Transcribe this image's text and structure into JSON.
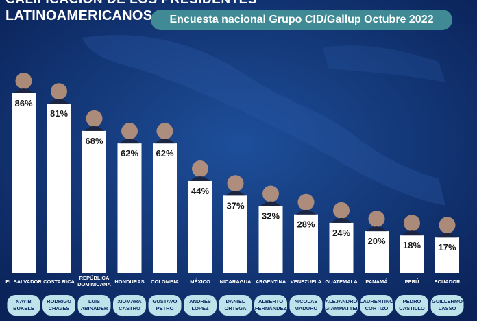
{
  "header": {
    "title_top": "CALIFICACIÓN DE LOS PRESIDENTES",
    "title_main": "LATINOAMERICANOS",
    "subtitle": "Encuesta nacional Grupo CID/Gallup Octubre 2022"
  },
  "colors": {
    "background": "#0c2a66",
    "bar": "#ffffff",
    "pill": "#bfe3ea",
    "subtitle_pill": "#3f8a95"
  },
  "chart_data": {
    "type": "bar",
    "categories": [
      "EL SALVADOR",
      "COSTA RICA",
      "REPÚBLICA DOMINICANA",
      "HONDURAS",
      "COLOMBIA",
      "MÉXICO",
      "NICARAGUA",
      "ARGENTINA",
      "VENEZUELA",
      "GUATEMALA",
      "PANAMÁ",
      "PERÚ",
      "ECUADOR"
    ],
    "category_lines": [
      [
        "EL SALVADOR"
      ],
      [
        "COSTA RICA"
      ],
      [
        "REPÚBLICA",
        "DOMINICANA"
      ],
      [
        "HONDURAS"
      ],
      [
        "COLOMBIA"
      ],
      [
        "MÉXICO"
      ],
      [
        "NICARAGUA"
      ],
      [
        "ARGENTINA"
      ],
      [
        "VENEZUELA"
      ],
      [
        "GUATEMALA"
      ],
      [
        "PANAMÁ"
      ],
      [
        "PERÚ"
      ],
      [
        "ECUADOR"
      ]
    ],
    "presidents": [
      [
        "NAYIB",
        "BUKELE"
      ],
      [
        "RODRIGO",
        "CHAVES"
      ],
      [
        "LUIS",
        "ABINADER"
      ],
      [
        "XIOMARA",
        "CASTRO"
      ],
      [
        "GUSTAVO",
        "PETRO"
      ],
      [
        "ANDRÉS",
        "LOPEZ"
      ],
      [
        "DANIEL",
        "ORTEGA"
      ],
      [
        "ALBERTO",
        "FERNÁNDEZ"
      ],
      [
        "NICOLAS",
        "MADURO"
      ],
      [
        "ALEJANDRO",
        "GIAMMATTEI"
      ],
      [
        "LAURENTINO",
        "CORTIZO"
      ],
      [
        "PEDRO",
        "CASTILLO"
      ],
      [
        "GUILLERMO",
        "LASSO"
      ]
    ],
    "values": [
      86,
      81,
      68,
      62,
      62,
      44,
      37,
      32,
      28,
      24,
      20,
      18,
      17
    ],
    "labels": [
      "86%",
      "81%",
      "68%",
      "62%",
      "62%",
      "44%",
      "37%",
      "32%",
      "28%",
      "24%",
      "20%",
      "18%",
      "17%"
    ],
    "unit": "%",
    "ylim": [
      0,
      86
    ]
  }
}
